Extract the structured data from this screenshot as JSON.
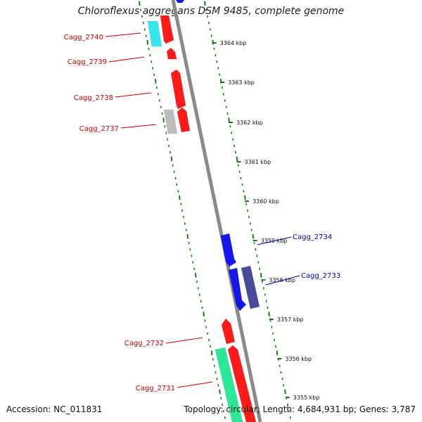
{
  "title": "Chloroflexus aggregans DSM 9485, complete genome",
  "footer": {
    "accession": "Accession: NC_011831",
    "summary": "Topology: circular; Length: 4,684,931 bp; Genes: 3,787"
  },
  "colors": {
    "backbone": "#8a8a8a",
    "tick": "#1f7a1f",
    "forward_label": "#cc0000",
    "reverse_label": "#0000aa",
    "red": "#ff1a1a",
    "cyan": "#33e8ee",
    "gray": "#bdbdbd",
    "blue": "#1515ee",
    "slate": "#4a4a9a",
    "spring": "#2ee89a"
  },
  "kbp_ticks": [
    "3364 kbp",
    "3363 kbp",
    "3362 kbp",
    "3361 kbp",
    "3360 kbp",
    "3359 kbp",
    "3358 kbp",
    "3357 kbp",
    "3356 kbp",
    "3355 kbp"
  ],
  "gene_labels_forward": [
    "Cagg_2740",
    "Cagg_2739",
    "Cagg_2738",
    "Cagg_2737",
    "Cagg_2732",
    "Cagg_2731"
  ],
  "gene_labels_reverse": [
    "Cagg_2734",
    "Cagg_2733"
  ]
}
